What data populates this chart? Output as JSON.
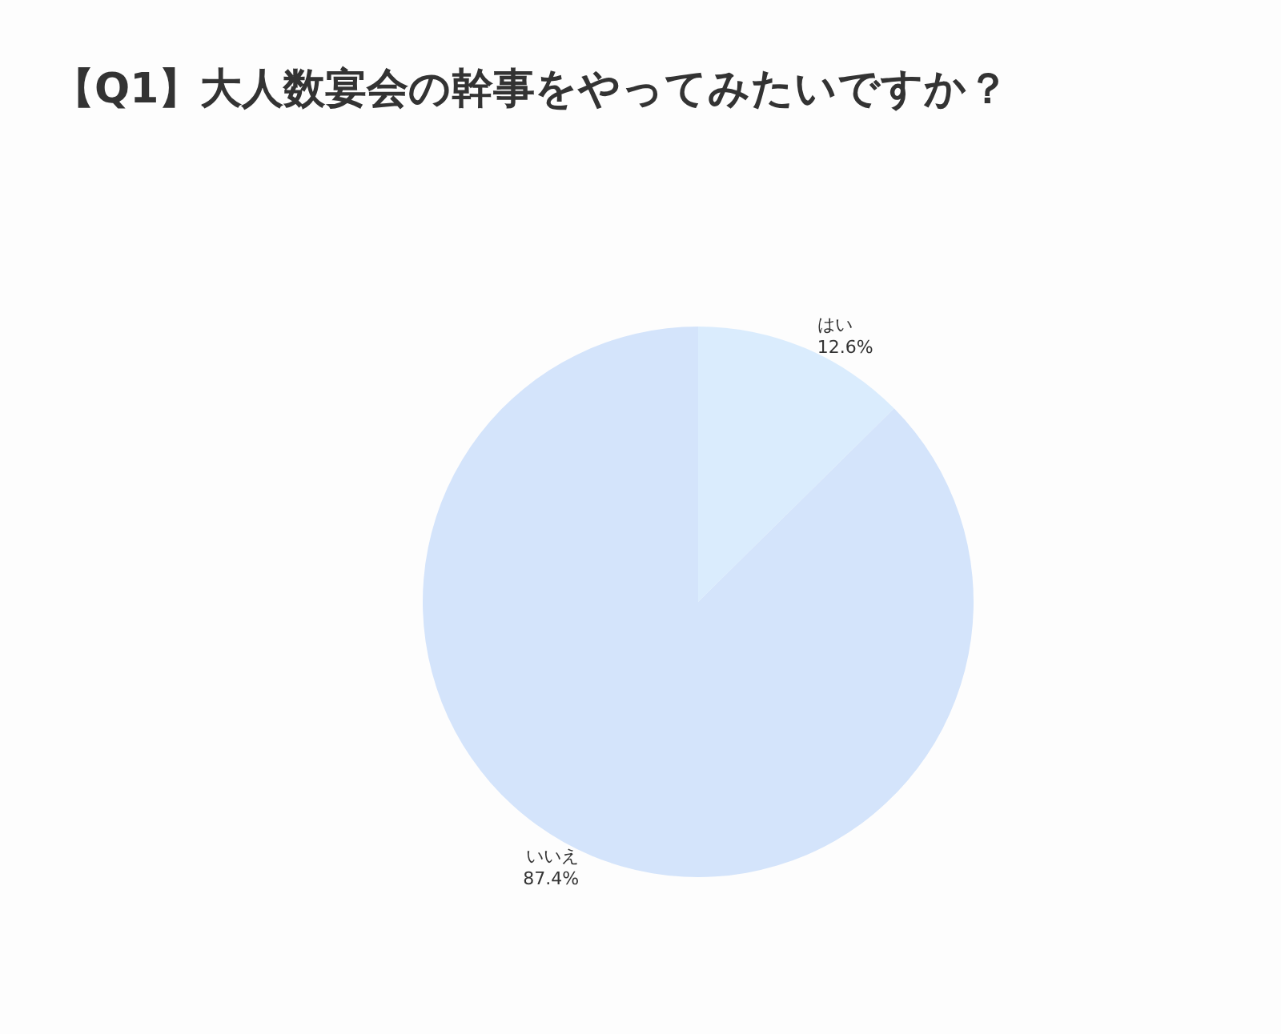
{
  "chart_data": {
    "type": "pie",
    "title": "【Q1】大人数宴会の幹事をやってみたいですか？",
    "categories": [
      "はい",
      "いいえ"
    ],
    "values": [
      12.6,
      87.4
    ],
    "colors": [
      "#daecfd",
      "#d4e4fb"
    ],
    "value_labels": [
      "12.6%",
      "87.4%"
    ],
    "legend": false
  }
}
